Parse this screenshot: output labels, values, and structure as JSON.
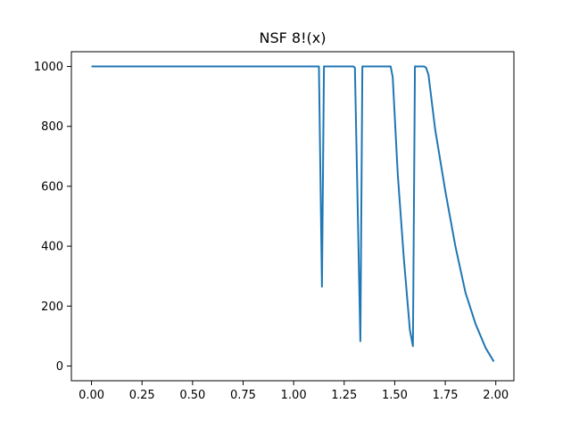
{
  "chart_data": {
    "type": "line",
    "title": "NSF 8!(x)",
    "xlabel": "",
    "ylabel": "",
    "xlim": [
      -0.0995,
      2.0895
    ],
    "ylim": [
      -49.2,
      1049.2
    ],
    "xticks": [
      0.0,
      0.25,
      0.5,
      0.75,
      1.0,
      1.25,
      1.5,
      1.75,
      2.0
    ],
    "xtick_labels": [
      "0.00",
      "0.25",
      "0.50",
      "0.75",
      "1.00",
      "1.25",
      "1.50",
      "1.75",
      "2.00"
    ],
    "yticks": [
      0,
      200,
      400,
      600,
      800,
      1000
    ],
    "ytick_labels": [
      "0",
      "200",
      "400",
      "600",
      "800",
      "1000"
    ],
    "grid": false,
    "series": [
      {
        "name": "NSF 8!(x)",
        "color": "#1f77b4",
        "x": [
          0.0,
          1.125,
          1.14,
          1.15,
          1.295,
          1.303,
          1.33,
          1.34,
          1.48,
          1.49,
          1.515,
          1.545,
          1.575,
          1.59,
          1.6,
          1.645,
          1.655,
          1.667,
          1.7,
          1.75,
          1.8,
          1.85,
          1.9,
          1.95,
          1.99
        ],
        "values": [
          1000,
          1000,
          265,
          1000,
          1000,
          996,
          83,
          1000,
          1000,
          965,
          640,
          360,
          120,
          66,
          1000,
          1000,
          996,
          972,
          790,
          585,
          400,
          245,
          140,
          60,
          15
        ]
      }
    ]
  }
}
